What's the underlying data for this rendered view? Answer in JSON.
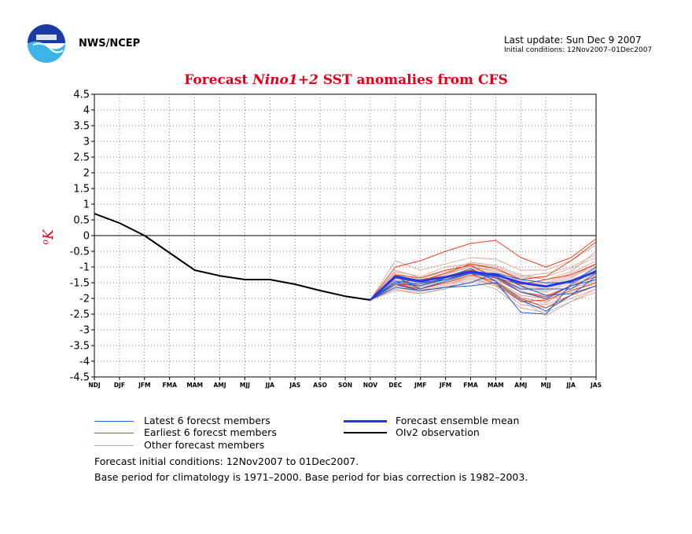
{
  "header": {
    "org": "NWS/NCEP",
    "last_update": "Last update: Sun Dec 9 2007",
    "initial_conditions": "Initial conditions: 12Nov2007–01Dec2007"
  },
  "title": {
    "prefix": "Forecast ",
    "italic": "Nino1+2",
    "suffix": " SST anomalies from CFS"
  },
  "legend": {
    "latest": "Latest 6 forecst members",
    "earliest": "Earliest 6 forecst members",
    "other": "Other forecast members",
    "mean": "Forecast ensemble mean",
    "obs": "OIv2 observation"
  },
  "footer": {
    "line1": "Forecast initial conditions: 12Nov2007 to 01Dec2007.",
    "line2": "Base period for climatology is 1971–2000. Base period for bias correction is 1982–2003."
  },
  "colors": {
    "latest": "#1f5fcf",
    "earliest": "#e8401a",
    "other": "#d4a596",
    "mean": "#2236e8",
    "obs": "#000000",
    "title": "#e0001a"
  },
  "chart_data": {
    "type": "line",
    "ylabel": "oK",
    "ylim": [
      -4.5,
      4.5
    ],
    "ytick_step": 0.5,
    "grid": true,
    "categories": [
      "NDJ",
      "DJF",
      "JFM",
      "FMA",
      "MAM",
      "AMJ",
      "MJJ",
      "JJA",
      "JAS",
      "ASO",
      "SON",
      "NOV",
      "DEC",
      "JMF",
      "JFM",
      "FMA",
      "MAM",
      "AMJ",
      "MJJ",
      "JJA",
      "JAS"
    ],
    "observation": {
      "name": "OIv2 observation",
      "x_index": [
        0,
        1,
        2,
        3,
        4,
        5,
        6,
        7,
        8,
        9,
        10,
        11
      ],
      "values": [
        0.7,
        0.4,
        0.0,
        -0.55,
        -1.1,
        -1.28,
        -1.4,
        -1.4,
        -1.55,
        -1.75,
        -1.93,
        -2.05
      ]
    },
    "ensemble_mean": {
      "name": "Forecast ensemble mean",
      "x_index": [
        11,
        12,
        13,
        14,
        15,
        16,
        17,
        18,
        19,
        20
      ],
      "values": [
        -2.05,
        -1.3,
        -1.45,
        -1.32,
        -1.15,
        -1.25,
        -1.5,
        -1.62,
        -1.45,
        -1.15
      ]
    },
    "latest_members": [
      [
        -2.05,
        -1.3,
        -1.7,
        -1.45,
        -1.2,
        -1.3,
        -1.7,
        -1.7,
        -1.7,
        -1.2
      ],
      [
        -2.05,
        -1.55,
        -1.75,
        -1.65,
        -1.6,
        -1.5,
        -2.05,
        -2.4,
        -1.9,
        -1.3
      ],
      [
        -2.05,
        -1.45,
        -1.55,
        -1.35,
        -1.05,
        -1.45,
        -2.45,
        -2.5,
        -1.55,
        -1.1
      ],
      [
        -2.05,
        -1.35,
        -1.5,
        -1.4,
        -1.2,
        -1.2,
        -1.4,
        -1.5,
        -1.5,
        -1.0
      ],
      [
        -2.05,
        -1.65,
        -1.75,
        -1.65,
        -1.5,
        -1.2,
        -1.6,
        -1.9,
        -1.85,
        -1.6
      ],
      [
        -2.05,
        -1.5,
        -1.6,
        -1.4,
        -1.2,
        -1.35,
        -1.8,
        -2.0,
        -1.6,
        -1.4
      ]
    ],
    "earliest_members": [
      [
        -2.05,
        -1.0,
        -0.8,
        -0.5,
        -0.25,
        -0.15,
        -0.7,
        -1.0,
        -0.7,
        -0.1
      ],
      [
        -2.05,
        -1.35,
        -1.45,
        -1.2,
        -0.9,
        -1.05,
        -1.4,
        -1.3,
        -0.8,
        -0.2
      ],
      [
        -2.05,
        -1.5,
        -1.4,
        -1.3,
        -1.1,
        -1.3,
        -1.8,
        -1.95,
        -1.6,
        -1.3
      ],
      [
        -2.05,
        -1.55,
        -1.6,
        -1.35,
        -1.2,
        -1.55,
        -2.1,
        -2.05,
        -1.75,
        -1.5
      ],
      [
        -2.05,
        -1.25,
        -1.35,
        -1.1,
        -0.95,
        -1.35,
        -1.55,
        -1.4,
        -1.25,
        -0.9
      ],
      [
        -2.05,
        -1.55,
        -1.7,
        -1.5,
        -1.25,
        -1.45,
        -2.0,
        -2.3,
        -1.9,
        -1.6
      ]
    ],
    "other_members": [
      [
        -2.05,
        -0.8,
        -1.1,
        -0.9,
        -0.7,
        -0.75,
        -1.1,
        -1.1,
        -0.8,
        -0.3
      ],
      [
        -2.05,
        -1.15,
        -1.3,
        -1.0,
        -0.9,
        -1.0,
        -1.3,
        -1.2,
        -1.0,
        -0.6
      ],
      [
        -2.05,
        -1.2,
        -1.4,
        -1.2,
        -1.0,
        -1.1,
        -1.4,
        -1.5,
        -1.2,
        -0.8
      ],
      [
        -2.05,
        -1.3,
        -1.5,
        -1.3,
        -1.05,
        -1.2,
        -1.5,
        -1.6,
        -1.3,
        -1.0
      ],
      [
        -2.05,
        -1.4,
        -1.55,
        -1.35,
        -1.1,
        -1.3,
        -1.6,
        -1.7,
        -1.4,
        -1.1
      ],
      [
        -2.05,
        -1.45,
        -1.6,
        -1.4,
        -1.15,
        -1.35,
        -1.7,
        -1.8,
        -1.5,
        -1.2
      ],
      [
        -2.05,
        -1.5,
        -1.65,
        -1.45,
        -1.2,
        -1.4,
        -1.8,
        -1.9,
        -1.6,
        -1.3
      ],
      [
        -2.05,
        -1.55,
        -1.7,
        -1.5,
        -1.25,
        -1.45,
        -1.9,
        -2.0,
        -1.7,
        -1.4
      ],
      [
        -2.05,
        -1.6,
        -1.75,
        -1.55,
        -1.3,
        -1.5,
        -2.0,
        -2.1,
        -1.8,
        -1.5
      ],
      [
        -2.05,
        -1.65,
        -1.8,
        -1.6,
        -1.35,
        -1.55,
        -2.1,
        -2.2,
        -1.9,
        -1.6
      ],
      [
        -2.05,
        -1.7,
        -1.85,
        -1.65,
        -1.4,
        -1.6,
        -2.2,
        -2.3,
        -2.0,
        -1.7
      ],
      [
        -2.05,
        -1.75,
        -1.85,
        -1.7,
        -1.45,
        -1.7,
        -2.3,
        -2.45,
        -2.1,
        -1.8
      ],
      [
        -2.05,
        -1.25,
        -1.45,
        -1.25,
        -0.95,
        -1.05,
        -1.35,
        -1.3,
        -1.05,
        -0.7
      ],
      [
        -2.05,
        -1.35,
        -1.5,
        -1.3,
        -1.1,
        -1.25,
        -1.55,
        -1.65,
        -1.35,
        -0.9
      ],
      [
        -2.05,
        -1.1,
        -1.35,
        -1.15,
        -0.85,
        -0.95,
        -1.25,
        -1.4,
        -1.15,
        -0.5
      ],
      [
        -2.05,
        -1.45,
        -1.55,
        -1.35,
        -1.15,
        -1.3,
        -1.75,
        -2.05,
        -1.55,
        -1.25
      ],
      [
        -2.05,
        -1.6,
        -1.65,
        -1.5,
        -1.3,
        -1.5,
        -1.95,
        -2.15,
        -1.65,
        -1.45
      ],
      [
        -2.05,
        -1.3,
        -1.45,
        -1.25,
        -1.0,
        -1.15,
        -1.45,
        -1.55,
        -1.25,
        -0.95
      ],
      [
        -2.05,
        -1.5,
        -1.75,
        -1.55,
        -1.35,
        -1.6,
        -2.05,
        -2.55,
        -2.1,
        -1.7
      ],
      [
        -2.05,
        -1.4,
        -1.6,
        -1.4,
        -1.2,
        -1.35,
        -1.65,
        -1.75,
        -1.45,
        -1.05
      ]
    ]
  }
}
